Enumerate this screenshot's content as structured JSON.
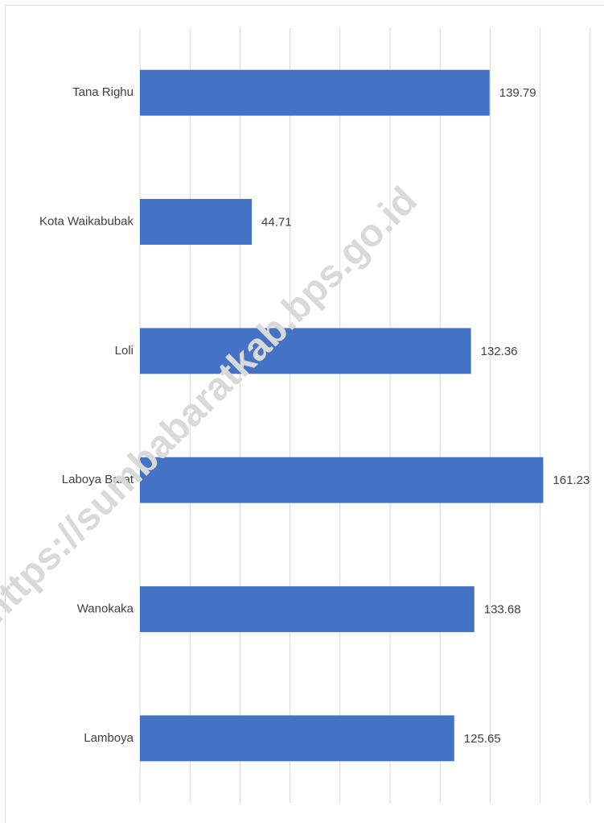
{
  "chart_data": {
    "type": "barh",
    "categories": [
      "Tana Righu",
      "Kota Waikabubak",
      "Loli",
      "Laboya Barat",
      "Wanokaka",
      "Lamboya"
    ],
    "values": [
      139.79,
      44.71,
      132.36,
      161.23,
      133.68,
      125.65
    ],
    "color": "#4472c4",
    "xlim": [
      0,
      180
    ],
    "xticks": [
      0,
      20,
      40,
      60,
      80,
      100,
      120,
      140,
      160,
      180
    ],
    "grid": true,
    "watermark": "https://sumbabaratkab.bps.go.id"
  }
}
